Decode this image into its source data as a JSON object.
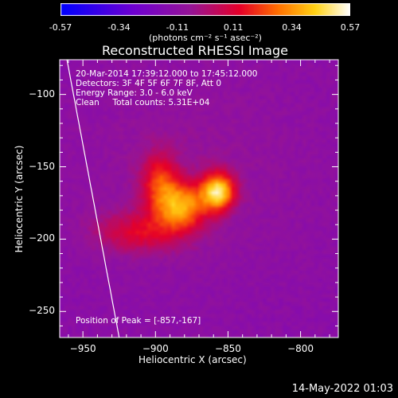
{
  "chart_data": {
    "type": "heatmap",
    "title": "Reconstructed RHESSI Image",
    "xlabel": "Heliocentric X (arcsec)",
    "ylabel": "Heliocentric Y (arcsec)",
    "xlim": [
      -966,
      -774
    ],
    "ylim": [
      -268,
      -76
    ],
    "x_ticks": [
      -950,
      -900,
      -850,
      -800
    ],
    "y_ticks": [
      -100,
      -150,
      -200,
      -250
    ],
    "colorbar": {
      "colormap": "blue-purple-red-yellow-white",
      "range": [
        -0.57,
        0.57
      ],
      "tick_values": [
        -0.57,
        -0.34,
        -0.11,
        0.11,
        0.34,
        0.57
      ],
      "tick_labels": [
        "-0.57",
        "-0.34",
        "-0.11",
        "0.11",
        "0.34",
        "0.57"
      ],
      "unit_label": "(photons cm⁻² s⁻¹ asec⁻²)"
    },
    "sources": [
      {
        "x": -857,
        "y": -167,
        "peak": 0.57,
        "width_x": 8,
        "width_y": 9
      },
      {
        "x": -882,
        "y": -177,
        "peak": 0.44,
        "width_x": 12,
        "width_y": 11
      },
      {
        "x": -897,
        "y": -160,
        "peak": 0.28,
        "width_x": 9,
        "width_y": 14
      },
      {
        "x": -910,
        "y": -195,
        "peak": 0.22,
        "width_x": 22,
        "width_y": 10
      },
      {
        "x": -875,
        "y": -150,
        "peak": 0.05,
        "width_x": 60,
        "width_y": 50
      }
    ],
    "background_level": -0.12,
    "info_lines": [
      "20-Mar-2014 17:39:12.000 to 17:45:12.000",
      "Detectors: 3F 4F 5F 6F 7F 8F, Att 0",
      "Energy Range: 3.0 - 6.0 keV",
      "Clean     Total counts: 5.31E+04"
    ],
    "peak_text": "Position of Peak = [-857,-167]",
    "limb": "white line"
  },
  "footer_date": "14-May-2022 01:03"
}
